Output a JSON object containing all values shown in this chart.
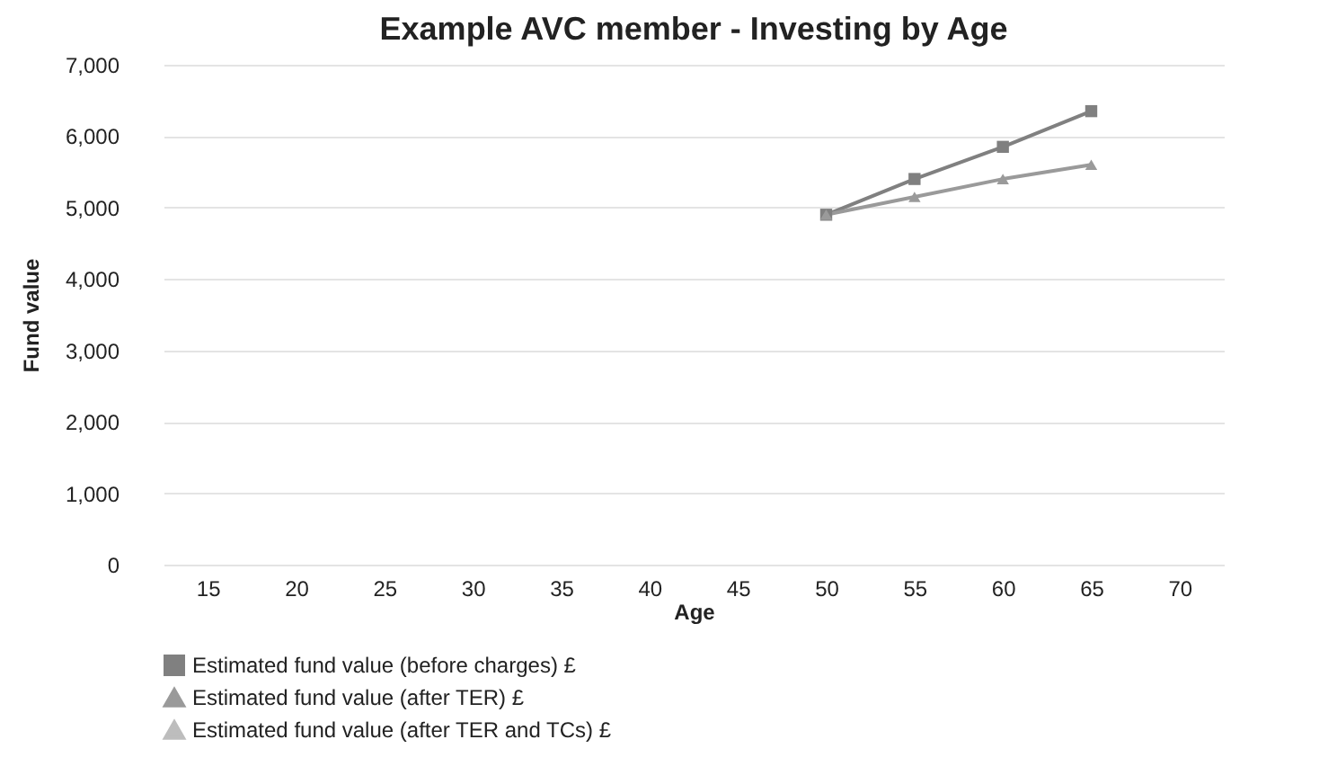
{
  "chart_data": {
    "type": "line",
    "title": "Example AVC member - Investing by Age",
    "xlabel": "Age",
    "ylabel": "Fund value",
    "categories": [
      "15",
      "20",
      "25",
      "30",
      "35",
      "40",
      "45",
      "50",
      "55",
      "60",
      "65",
      "70"
    ],
    "series": [
      {
        "name": "Estimated fund value (before charges) £",
        "color": "#808080",
        "marker": "square",
        "values": [
          null,
          null,
          null,
          null,
          null,
          null,
          null,
          4900,
          5400,
          5850,
          6350,
          null
        ]
      },
      {
        "name": "Estimated fund value (after TER) £",
        "color": "#9a9a9a",
        "marker": "triangle",
        "values": [
          null,
          null,
          null,
          null,
          null,
          null,
          null,
          4900,
          5150,
          5400,
          5600,
          null
        ]
      },
      {
        "name": "Estimated fund value (after TER and TCs) £",
        "color": "#bdbdbd",
        "marker": "triangle",
        "values": [
          null,
          null,
          null,
          null,
          null,
          null,
          null,
          null,
          null,
          null,
          null,
          null
        ]
      }
    ],
    "ylim": [
      0,
      7000
    ],
    "yticks": [
      0,
      {
        "value": 1000,
        "label": "1,000"
      },
      {
        "value": 2000,
        "label": "2,000"
      },
      {
        "value": 3000,
        "label": "3,000"
      },
      {
        "value": 4000,
        "label": "4,000"
      },
      {
        "value": 5000,
        "label": "5,000"
      },
      {
        "value": 6000,
        "label": "6,000"
      },
      {
        "value": 7000,
        "label": "7,000"
      }
    ],
    "grid": "y",
    "legend": "bottom"
  }
}
